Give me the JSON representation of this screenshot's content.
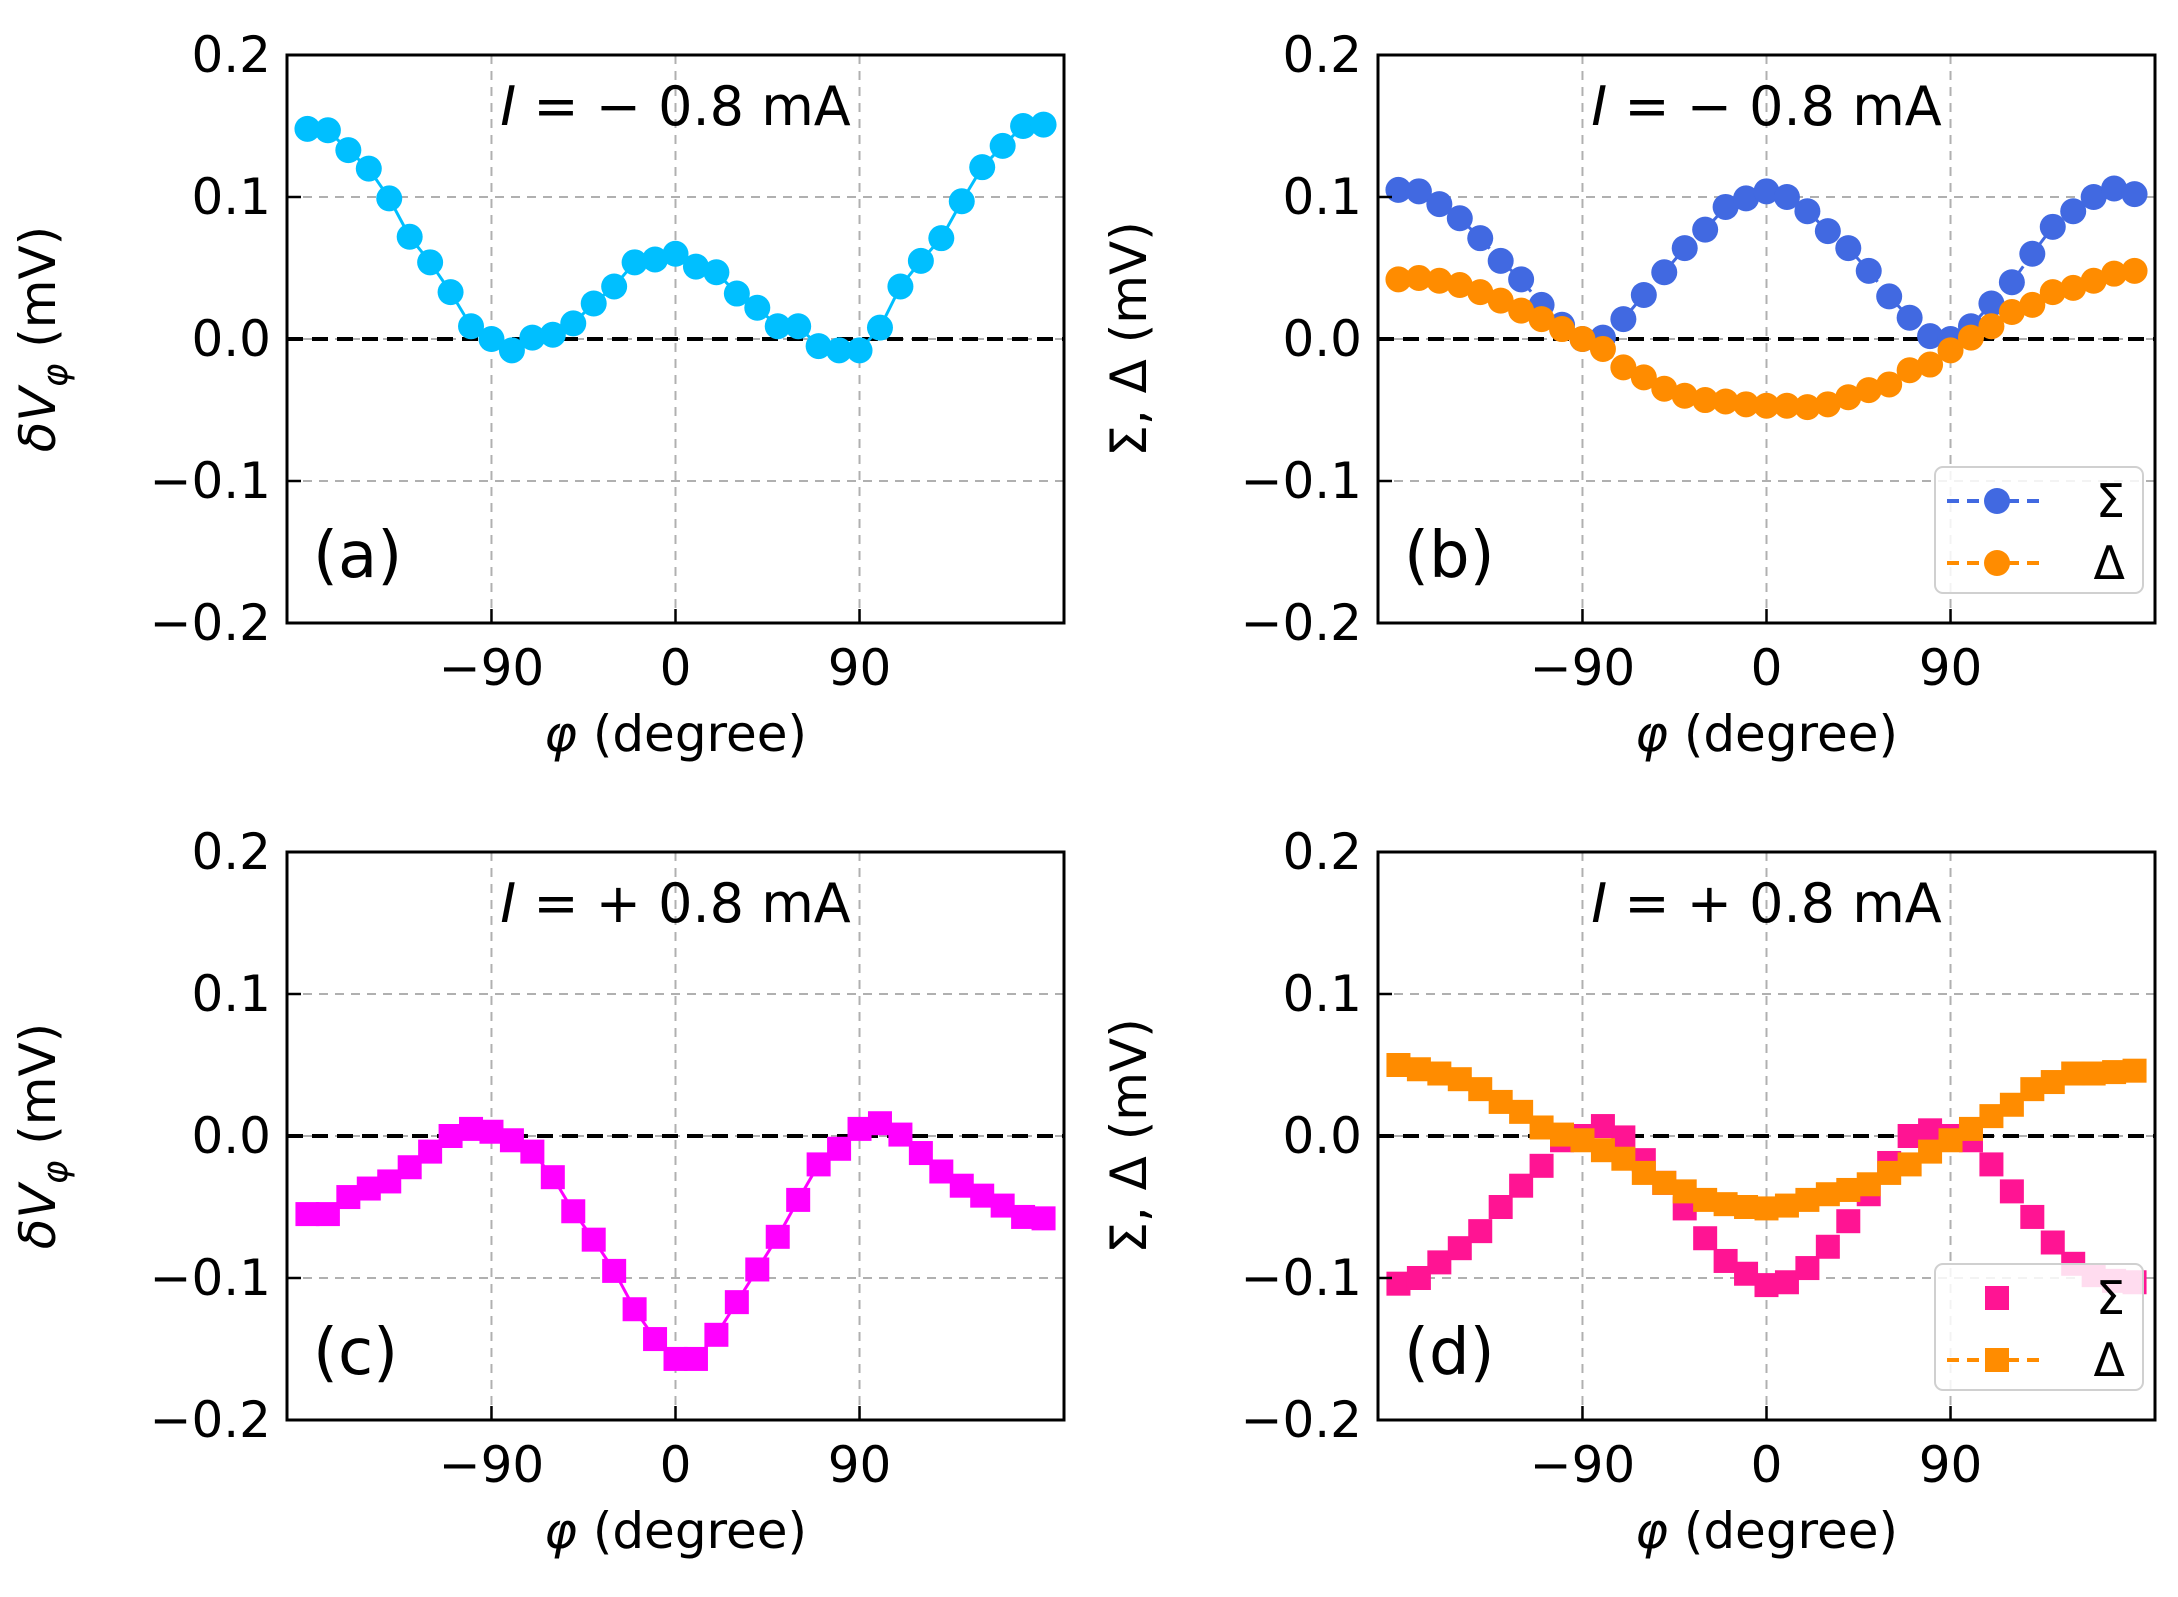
{
  "chart_data": [
    {
      "panel": "a",
      "type": "line",
      "panel_label": "(a)",
      "annotation": "I = − 0.8 mA",
      "annotation_parts": {
        "var": "I",
        "rest": " = − 0.8 mA"
      },
      "xlabel": "φ (degree)",
      "ylabel": "δV_φ (mV)",
      "ylabel_parts": {
        "main": "δV",
        "sub": "φ",
        "unit": " (mV)"
      },
      "xlim": [
        -190,
        190
      ],
      "ylim": [
        -0.2,
        0.2
      ],
      "xticks": [
        -90,
        0,
        90
      ],
      "xtick_labels": [
        "−90",
        "0",
        "90"
      ],
      "yticks": [
        -0.2,
        -0.1,
        0.0,
        0.1,
        0.2
      ],
      "ytick_labels": [
        "−0.2",
        "−0.1",
        "0.0",
        "0.1",
        "0.2"
      ],
      "grid": true,
      "zero_line": true,
      "series": [
        {
          "name": "δV_φ",
          "color": "#00bfff",
          "marker": "circle",
          "line": "solid",
          "x": [
            -180,
            -170,
            -160,
            -150,
            -140,
            -130,
            -120,
            -110,
            -100,
            -90,
            -80,
            -70,
            -60,
            -50,
            -40,
            -30,
            -20,
            -10,
            0,
            10,
            20,
            30,
            40,
            50,
            60,
            70,
            80,
            90,
            100,
            110,
            120,
            130,
            140,
            150,
            160,
            170,
            180
          ],
          "y": [
            0.148,
            0.147,
            0.133,
            0.12,
            0.099,
            0.072,
            0.054,
            0.033,
            0.009,
            0.0,
            -0.008,
            0.001,
            0.003,
            0.011,
            0.025,
            0.037,
            0.054,
            0.056,
            0.06,
            0.051,
            0.047,
            0.032,
            0.022,
            0.009,
            0.009,
            -0.005,
            -0.008,
            -0.008,
            0.008,
            0.037,
            0.055,
            0.071,
            0.097,
            0.121,
            0.136,
            0.15,
            0.151
          ]
        }
      ]
    },
    {
      "panel": "b",
      "type": "line",
      "panel_label": "(b)",
      "annotation": "I = − 0.8 mA",
      "annotation_parts": {
        "var": "I",
        "rest": " = − 0.8 mA"
      },
      "xlabel": "φ (degree)",
      "ylabel": "Σ, Δ (mV)",
      "xlim": [
        -190,
        190
      ],
      "ylim": [
        -0.2,
        0.2
      ],
      "xticks": [
        -90,
        0,
        90
      ],
      "xtick_labels": [
        "−90",
        "0",
        "90"
      ],
      "yticks": [
        -0.2,
        -0.1,
        0.0,
        0.1,
        0.2
      ],
      "ytick_labels": [
        "−0.2",
        "−0.1",
        "0.0",
        "0.1",
        "0.2"
      ],
      "grid": true,
      "zero_line": true,
      "legend": "lower-right",
      "series": [
        {
          "name": "Σ",
          "color": "#4169e1",
          "marker": "circle",
          "line": "dashed",
          "x": [
            -180,
            -170,
            -160,
            -150,
            -140,
            -130,
            -120,
            -110,
            -100,
            -90,
            -80,
            -70,
            -60,
            -50,
            -40,
            -30,
            -20,
            -10,
            0,
            10,
            20,
            30,
            40,
            50,
            60,
            70,
            80,
            90,
            100,
            110,
            120,
            130,
            140,
            150,
            160,
            170,
            180
          ],
          "y": [
            0.105,
            0.104,
            0.095,
            0.085,
            0.071,
            0.055,
            0.042,
            0.024,
            0.01,
            0.0,
            0.001,
            0.014,
            0.031,
            0.047,
            0.064,
            0.077,
            0.093,
            0.099,
            0.104,
            0.1,
            0.09,
            0.076,
            0.064,
            0.048,
            0.03,
            0.015,
            0.002,
            0.0,
            0.009,
            0.025,
            0.04,
            0.06,
            0.079,
            0.09,
            0.1,
            0.106,
            0.102
          ]
        },
        {
          "name": "Δ",
          "color": "#ff8c00",
          "marker": "circle",
          "line": "dashed",
          "x": [
            -180,
            -170,
            -160,
            -150,
            -140,
            -130,
            -120,
            -110,
            -100,
            -90,
            -80,
            -70,
            -60,
            -50,
            -40,
            -30,
            -20,
            -10,
            0,
            10,
            20,
            30,
            40,
            50,
            60,
            70,
            80,
            90,
            100,
            110,
            120,
            130,
            140,
            150,
            160,
            170,
            180
          ],
          "y": [
            0.042,
            0.043,
            0.041,
            0.038,
            0.033,
            0.027,
            0.02,
            0.014,
            0.007,
            0.0,
            -0.007,
            -0.02,
            -0.027,
            -0.035,
            -0.04,
            -0.043,
            -0.044,
            -0.046,
            -0.047,
            -0.047,
            -0.048,
            -0.046,
            -0.041,
            -0.036,
            -0.032,
            -0.022,
            -0.018,
            -0.008,
            0.001,
            0.009,
            0.019,
            0.024,
            0.033,
            0.036,
            0.041,
            0.046,
            0.048
          ]
        }
      ]
    },
    {
      "panel": "c",
      "type": "line",
      "panel_label": "(c)",
      "annotation": "I = + 0.8 mA",
      "annotation_parts": {
        "var": "I",
        "rest": " = + 0.8 mA"
      },
      "xlabel": "φ (degree)",
      "ylabel": "δV_φ (mV)",
      "ylabel_parts": {
        "main": "δV",
        "sub": "φ",
        "unit": " (mV)"
      },
      "xlim": [
        -190,
        190
      ],
      "ylim": [
        -0.2,
        0.2
      ],
      "xticks": [
        -90,
        0,
        90
      ],
      "xtick_labels": [
        "−90",
        "0",
        "90"
      ],
      "yticks": [
        -0.2,
        -0.1,
        0.0,
        0.1,
        0.2
      ],
      "ytick_labels": [
        "−0.2",
        "−0.1",
        "0.0",
        "0.1",
        "0.2"
      ],
      "grid": true,
      "zero_line": true,
      "series": [
        {
          "name": "δV_φ",
          "color": "#ff00ff",
          "marker": "square",
          "line": "solid",
          "x": [
            -180,
            -170,
            -160,
            -150,
            -140,
            -130,
            -120,
            -110,
            -100,
            -90,
            -80,
            -70,
            -60,
            -50,
            -40,
            -30,
            -20,
            -10,
            0,
            10,
            20,
            30,
            40,
            50,
            60,
            70,
            80,
            90,
            100,
            110,
            120,
            130,
            140,
            150,
            160,
            170,
            180
          ],
          "y": [
            -0.055,
            -0.055,
            -0.043,
            -0.037,
            -0.032,
            -0.022,
            -0.011,
            0.0,
            0.005,
            0.003,
            -0.003,
            -0.011,
            -0.029,
            -0.053,
            -0.073,
            -0.095,
            -0.122,
            -0.143,
            -0.157,
            -0.157,
            -0.14,
            -0.117,
            -0.094,
            -0.071,
            -0.045,
            -0.02,
            -0.009,
            0.005,
            0.009,
            0.001,
            -0.012,
            -0.025,
            -0.035,
            -0.042,
            -0.049,
            -0.057,
            -0.058
          ]
        }
      ]
    },
    {
      "panel": "d",
      "type": "line",
      "panel_label": "(d)",
      "annotation": "I = + 0.8 mA",
      "annotation_parts": {
        "var": "I",
        "rest": " = + 0.8 mA"
      },
      "xlabel": "φ (degree)",
      "ylabel": "Σ, Δ (mV)",
      "xlim": [
        -190,
        190
      ],
      "ylim": [
        -0.2,
        0.2
      ],
      "xticks": [
        -90,
        0,
        90
      ],
      "xtick_labels": [
        "−90",
        "0",
        "90"
      ],
      "yticks": [
        -0.2,
        -0.1,
        0.0,
        0.1,
        0.2
      ],
      "ytick_labels": [
        "−0.2",
        "−0.1",
        "0.0",
        "0.1",
        "0.2"
      ],
      "grid": true,
      "zero_line": true,
      "legend": "lower-right",
      "series": [
        {
          "name": "Σ",
          "color": "#ff1493",
          "marker": "square",
          "line": "none",
          "x": [
            -180,
            -170,
            -160,
            -150,
            -140,
            -130,
            -120,
            -110,
            -100,
            -90,
            -80,
            -70,
            -60,
            -50,
            -40,
            -30,
            -20,
            -10,
            0,
            10,
            20,
            30,
            40,
            50,
            60,
            70,
            80,
            90,
            100,
            110,
            120,
            130,
            140,
            150,
            160,
            170,
            180
          ],
          "y": [
            -0.104,
            -0.1,
            -0.089,
            -0.079,
            -0.067,
            -0.05,
            -0.035,
            -0.021,
            -0.003,
            0.0,
            0.007,
            -0.001,
            -0.017,
            -0.033,
            -0.051,
            -0.072,
            -0.088,
            -0.097,
            -0.105,
            -0.103,
            -0.093,
            -0.078,
            -0.06,
            -0.041,
            -0.019,
            0.0,
            0.004,
            0.0,
            -0.003,
            -0.02,
            -0.039,
            -0.057,
            -0.075,
            -0.09,
            -0.098,
            -0.102,
            -0.103
          ]
        },
        {
          "name": "Δ",
          "color": "#ff8c00",
          "marker": "square",
          "line": "dashed",
          "x": [
            -180,
            -170,
            -160,
            -150,
            -140,
            -130,
            -120,
            -110,
            -100,
            -90,
            -80,
            -70,
            -60,
            -50,
            -40,
            -30,
            -20,
            -10,
            0,
            10,
            20,
            30,
            40,
            50,
            60,
            70,
            80,
            90,
            100,
            110,
            120,
            130,
            140,
            150,
            160,
            170,
            180
          ],
          "y": [
            0.05,
            0.047,
            0.044,
            0.04,
            0.033,
            0.024,
            0.017,
            0.006,
            0.001,
            -0.003,
            -0.01,
            -0.016,
            -0.026,
            -0.033,
            -0.039,
            -0.045,
            -0.048,
            -0.05,
            -0.051,
            -0.049,
            -0.045,
            -0.041,
            -0.038,
            -0.034,
            -0.026,
            -0.02,
            -0.011,
            -0.003,
            0.005,
            0.014,
            0.022,
            0.033,
            0.038,
            0.044,
            0.044,
            0.045,
            0.046
          ]
        }
      ]
    }
  ]
}
